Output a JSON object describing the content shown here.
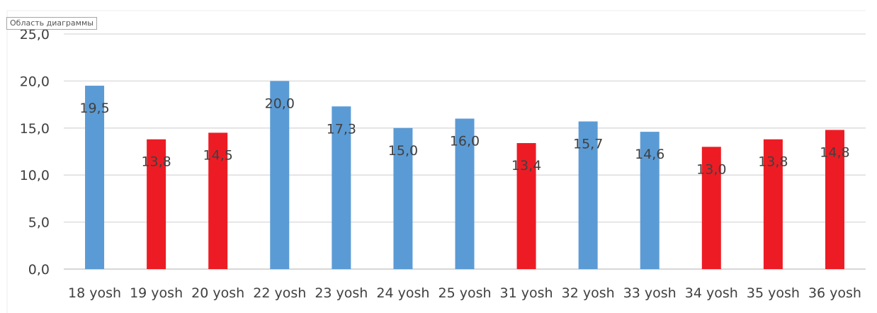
{
  "chart_area_label": "Область диаграммы",
  "chart_data": {
    "type": "bar",
    "title": "",
    "xlabel": "",
    "ylabel": "",
    "ylim": [
      0,
      25
    ],
    "yticks": [
      "0,0",
      "5,0",
      "10,0",
      "15,0",
      "20,0",
      "25,0"
    ],
    "grid": true,
    "legend": "none",
    "categories": [
      "18 yosh",
      "19 yosh",
      "20 yosh",
      "22 yosh",
      "23 yosh",
      "24 yosh",
      "25 yosh",
      "31 yosh",
      "32 yosh",
      "33 yosh",
      "34 yosh",
      "35 yosh",
      "36 yosh"
    ],
    "values": [
      19.5,
      13.8,
      14.5,
      20.0,
      17.3,
      15.0,
      16.0,
      13.4,
      15.7,
      14.6,
      13.0,
      13.8,
      14.8
    ],
    "value_labels": [
      "19,5",
      "13,8",
      "14,5",
      "20,0",
      "17,3",
      "15,0",
      "16,0",
      "13,4",
      "15,7",
      "14,6",
      "13,0",
      "13,8",
      "14,8"
    ],
    "bar_colors": [
      "#5b9bd5",
      "#ed1c24",
      "#ed1c24",
      "#5b9bd5",
      "#5b9bd5",
      "#5b9bd5",
      "#5b9bd5",
      "#ed1c24",
      "#5b9bd5",
      "#5b9bd5",
      "#ed1c24",
      "#ed1c24",
      "#ed1c24"
    ],
    "colors": {
      "blue": "#5b9bd5",
      "red": "#ed1c24",
      "grid": "#d9d9d9",
      "text": "#404040"
    }
  }
}
